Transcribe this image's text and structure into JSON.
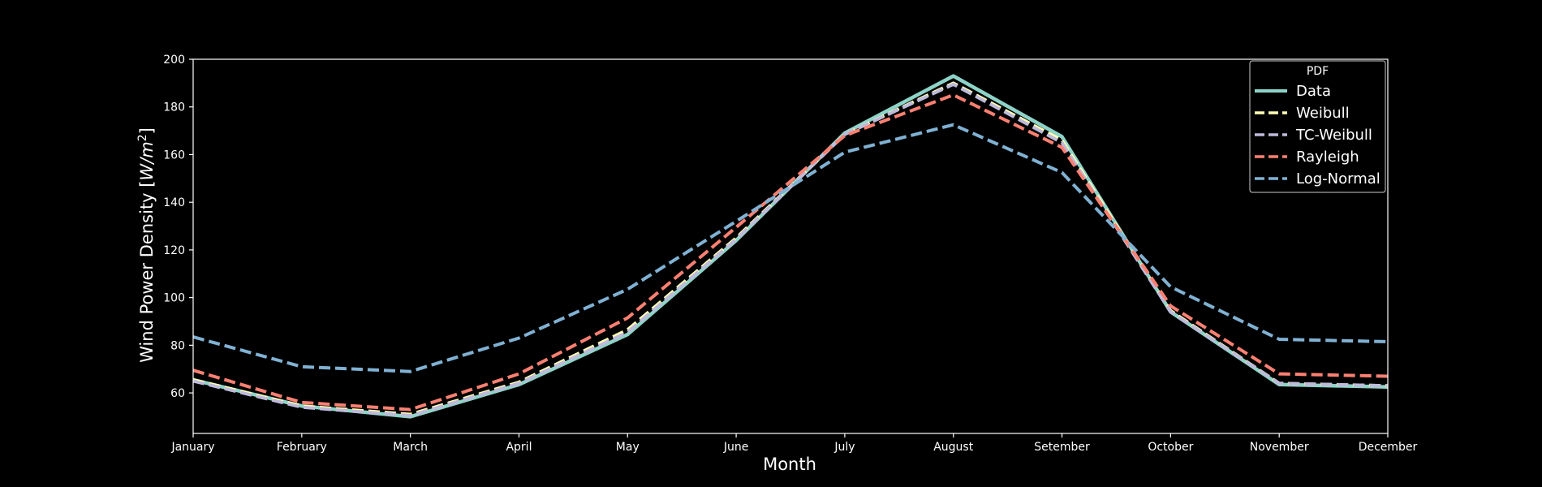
{
  "chart_data": {
    "type": "line",
    "xlabel": "Month",
    "ylabel": "Wind Power Density [W/m²]",
    "ylabel_parts": {
      "main": "Wind Power Density [",
      "unit_w": "W",
      "unit_m": "/m",
      "unit_sup": "2",
      "close": "]"
    },
    "categories": [
      "January",
      "February",
      "March",
      "April",
      "May",
      "June",
      "July",
      "August",
      "Setember",
      "October",
      "November",
      "December"
    ],
    "ylim": [
      43,
      200
    ],
    "yticks": [
      60,
      80,
      100,
      120,
      140,
      160,
      180,
      200
    ],
    "grid": false,
    "legend": {
      "title": "PDF",
      "placement": "top-right"
    },
    "series": [
      {
        "name": "Data",
        "style": "solid",
        "color": "#8dd3c7",
        "values": [
          65.5,
          54.5,
          50.0,
          63.5,
          84.5,
          124.0,
          169.0,
          193.0,
          167.5,
          94.0,
          63.5,
          62.5
        ]
      },
      {
        "name": "Weibull",
        "style": "dashed",
        "color": "#ffffb3",
        "values": [
          65.5,
          54.5,
          51.0,
          64.5,
          86.5,
          125.0,
          168.5,
          190.0,
          166.0,
          94.5,
          64.0,
          63.0
        ]
      },
      {
        "name": "TC-Weibull",
        "style": "dashed",
        "color": "#bebada",
        "values": [
          65.0,
          54.0,
          50.5,
          64.0,
          85.5,
          124.5,
          168.5,
          189.5,
          165.0,
          94.0,
          64.0,
          63.0
        ]
      },
      {
        "name": "Rayleigh",
        "style": "dashed",
        "color": "#fb8072",
        "values": [
          69.5,
          56.0,
          53.0,
          68.0,
          91.5,
          129.5,
          168.0,
          185.0,
          163.0,
          96.5,
          68.0,
          67.0
        ]
      },
      {
        "name": "Log-Normal",
        "style": "dashed",
        "color": "#80b1d3",
        "values": [
          83.5,
          71.0,
          69.0,
          83.0,
          103.5,
          132.0,
          161.0,
          172.5,
          152.5,
          104.5,
          82.5,
          81.5
        ]
      }
    ]
  }
}
